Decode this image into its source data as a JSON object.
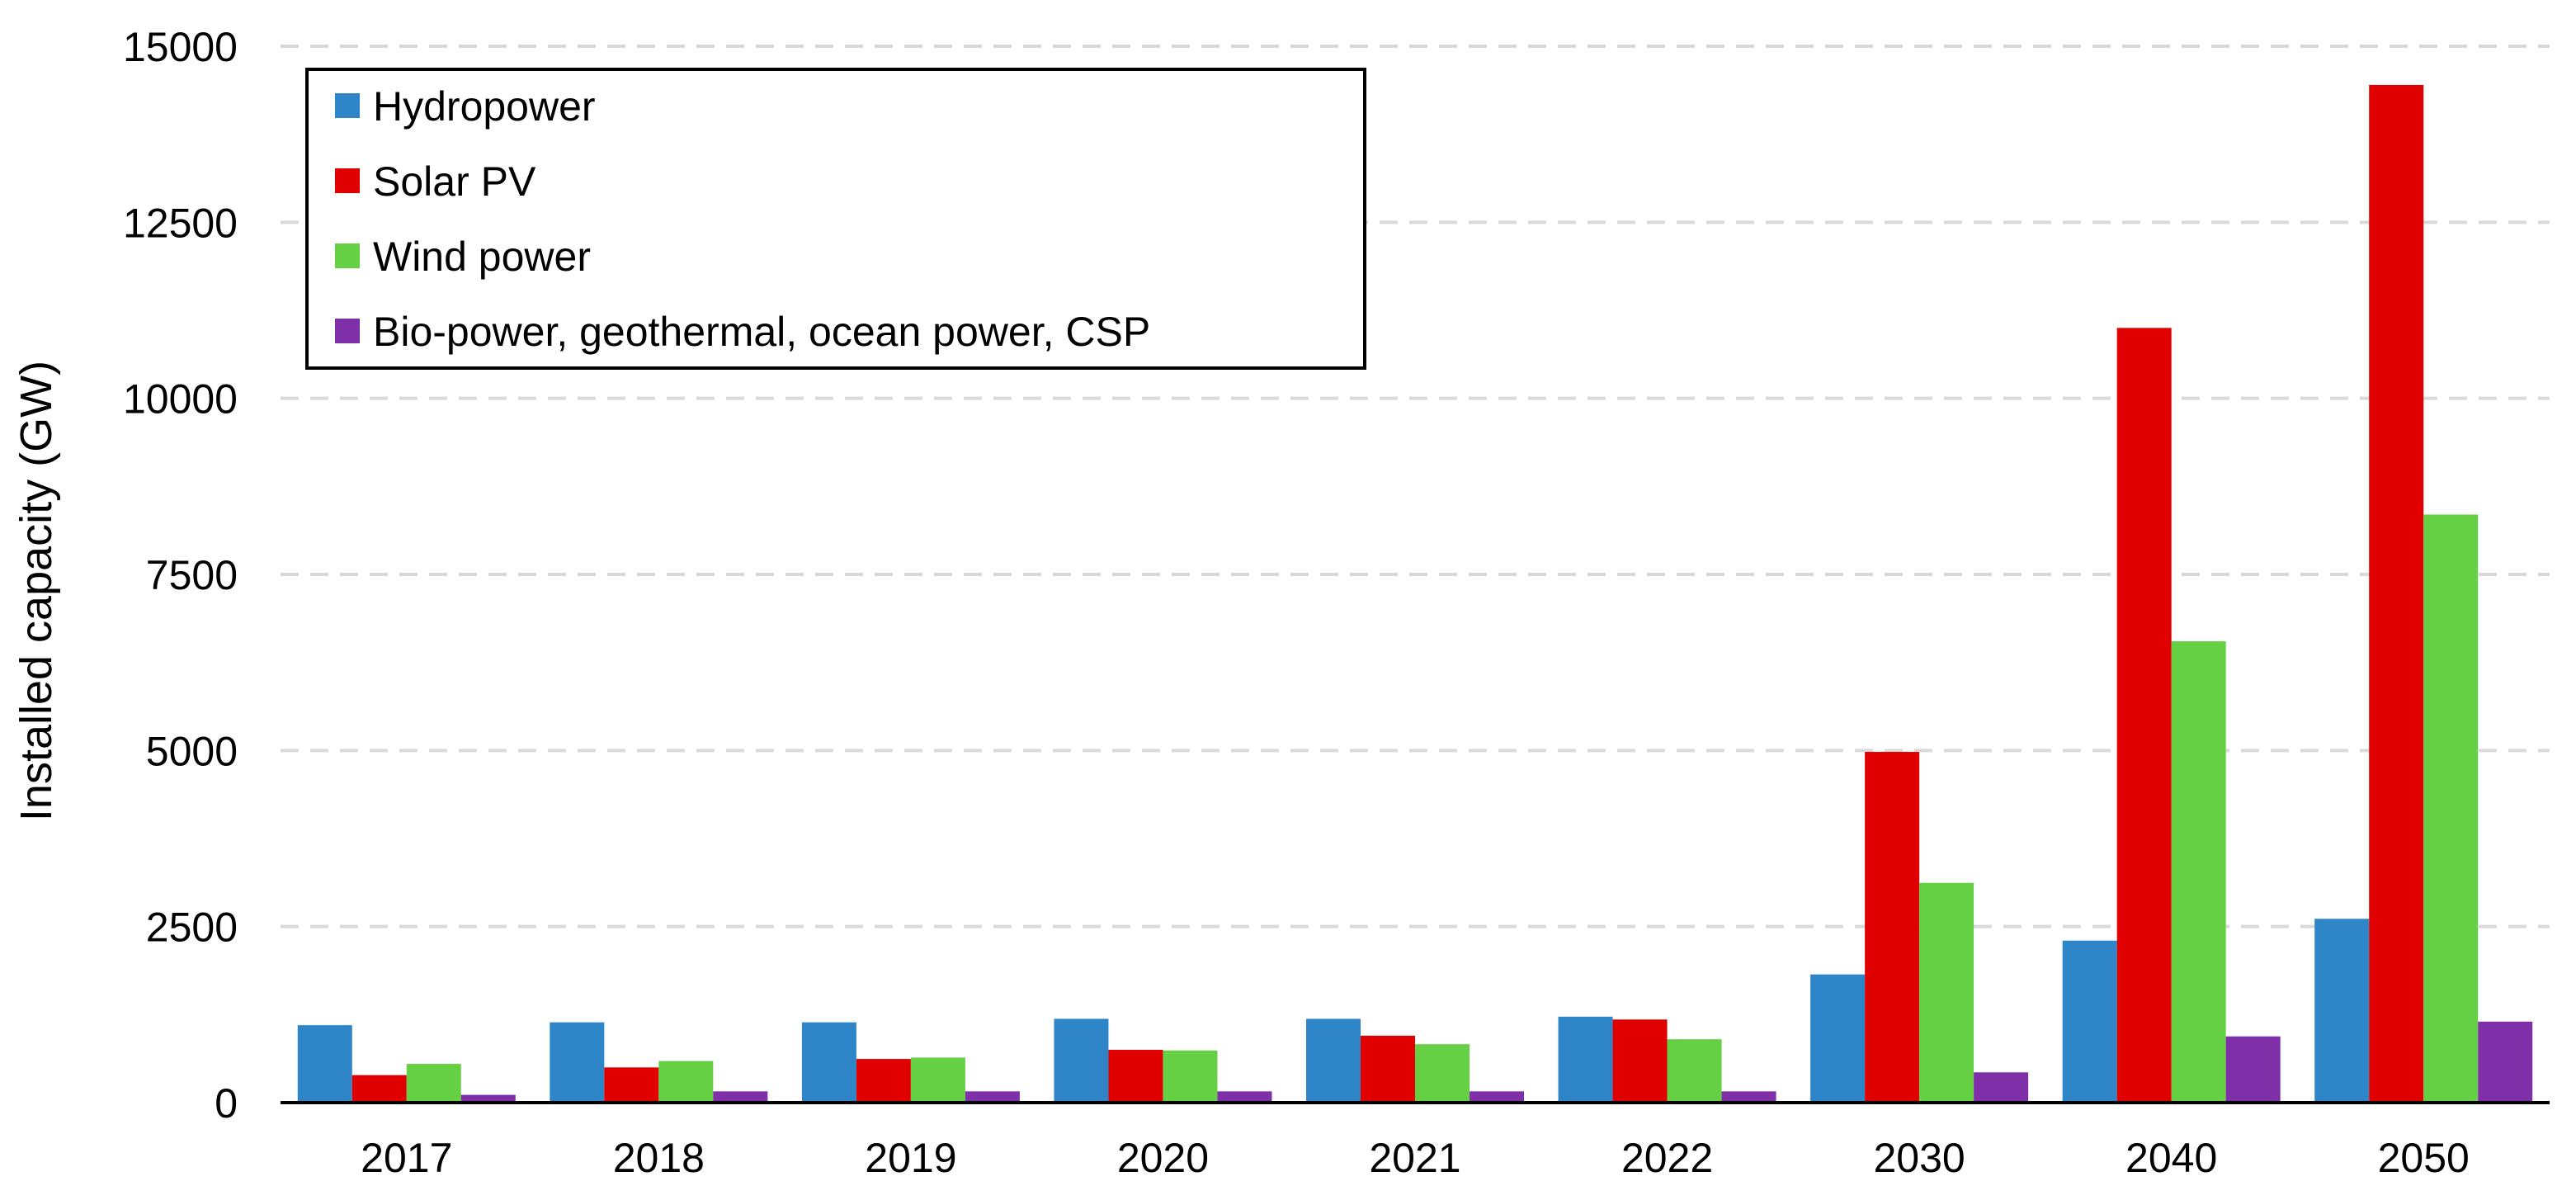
{
  "chart_data": {
    "type": "bar",
    "title": "",
    "xlabel": "",
    "ylabel": "Installed capacity (GW)",
    "ylim": [
      0,
      15000
    ],
    "yticks": [
      0,
      2500,
      5000,
      7500,
      10000,
      12500,
      15000
    ],
    "ytick_labels": [
      "0",
      "2500",
      "5000",
      "7500",
      "10000",
      "12500",
      "15000"
    ],
    "grid": true,
    "legend_position": "top-left",
    "categories": [
      "2017",
      "2018",
      "2019",
      "2020",
      "2021",
      "2022",
      "2030",
      "2040",
      "2050"
    ],
    "series": [
      {
        "name": "Hydropower",
        "color": "#2e86c8",
        "values": [
          1100,
          1140,
          1140,
          1190,
          1190,
          1220,
          1820,
          2300,
          2610
        ]
      },
      {
        "name": "Solar PV",
        "color": "#e00000",
        "values": [
          390,
          500,
          620,
          750,
          950,
          1180,
          4980,
          11000,
          14450
        ]
      },
      {
        "name": "Wind power",
        "color": "#66d044",
        "values": [
          550,
          590,
          640,
          740,
          830,
          900,
          3120,
          6550,
          8350
        ]
      },
      {
        "name": "Bio-power, geothermal, ocean power, CSP",
        "color": "#7f2fa8",
        "values": [
          110,
          160,
          160,
          160,
          160,
          160,
          430,
          940,
          1150
        ]
      }
    ]
  }
}
